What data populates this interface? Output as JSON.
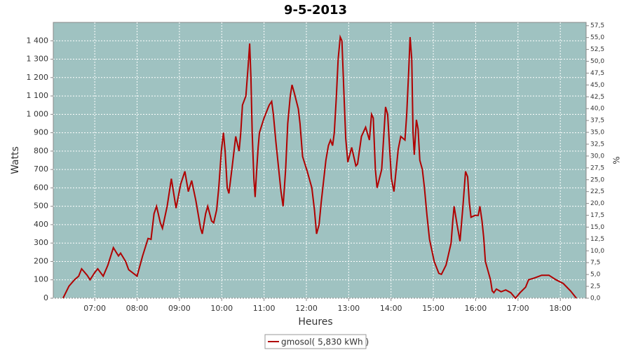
{
  "chart_data": {
    "type": "line",
    "title": "9-5-2013",
    "xlabel": "Heures",
    "ylabel": "Watts",
    "y2label": "%",
    "x": [
      6.25,
      6.39,
      6.52,
      6.62,
      6.69,
      6.82,
      6.89,
      7.0,
      7.07,
      7.2,
      7.31,
      7.44,
      7.56,
      7.61,
      7.73,
      7.8,
      8.0,
      8.13,
      8.26,
      8.33,
      8.4,
      8.46,
      8.55,
      8.6,
      8.71,
      8.81,
      8.92,
      9.03,
      9.13,
      9.21,
      9.29,
      9.39,
      9.5,
      9.54,
      9.62,
      9.67,
      9.76,
      9.81,
      9.88,
      9.93,
      9.99,
      10.04,
      10.08,
      10.13,
      10.17,
      10.25,
      10.33,
      10.41,
      10.45,
      10.49,
      10.57,
      10.62,
      10.66,
      10.69,
      10.72,
      10.76,
      10.79,
      10.82,
      10.86,
      10.89,
      11.0,
      11.12,
      11.18,
      11.22,
      11.28,
      11.4,
      11.45,
      11.51,
      11.56,
      11.62,
      11.66,
      11.71,
      11.81,
      11.85,
      11.91,
      12.02,
      12.13,
      12.19,
      12.24,
      12.3,
      12.35,
      12.46,
      12.52,
      12.57,
      12.62,
      12.66,
      12.71,
      12.75,
      12.8,
      12.84,
      12.89,
      12.93,
      12.98,
      13.07,
      13.17,
      13.21,
      13.3,
      13.4,
      13.49,
      13.54,
      13.58,
      13.63,
      13.67,
      13.78,
      13.87,
      13.92,
      14.01,
      14.07,
      14.17,
      14.23,
      14.33,
      14.37,
      14.42,
      14.45,
      14.49,
      14.52,
      14.55,
      14.6,
      14.64,
      14.68,
      14.74,
      14.79,
      14.85,
      14.91,
      15.02,
      15.13,
      15.19,
      15.3,
      15.42,
      15.46,
      15.49,
      15.56,
      15.63,
      15.7,
      15.76,
      15.81,
      15.85,
      15.89,
      15.98,
      16.06,
      16.1,
      16.15,
      16.19,
      16.23,
      16.35,
      16.39,
      16.43,
      16.49,
      16.6,
      16.71,
      16.83,
      16.94,
      17.05,
      17.18,
      17.25,
      17.39,
      17.56,
      17.73,
      17.9,
      18.07,
      18.24,
      18.38
    ],
    "series": [
      {
        "name": "gmosol( 5,830 kWh )",
        "color": "#b00000",
        "values": [
          0,
          65,
          100,
          120,
          160,
          125,
          100,
          140,
          160,
          120,
          180,
          275,
          230,
          245,
          200,
          155,
          120,
          230,
          325,
          320,
          460,
          500,
          410,
          380,
          500,
          650,
          490,
          620,
          690,
          580,
          640,
          530,
          380,
          350,
          460,
          500,
          420,
          410,
          480,
          600,
          800,
          900,
          800,
          600,
          570,
          720,
          880,
          800,
          900,
          1050,
          1100,
          1250,
          1385,
          1200,
          900,
          650,
          550,
          680,
          820,
          900,
          980,
          1050,
          1070,
          1000,
          850,
          580,
          500,
          700,
          950,
          1100,
          1160,
          1120,
          1030,
          950,
          770,
          690,
          600,
          480,
          350,
          400,
          520,
          750,
          830,
          860,
          830,
          900,
          1100,
          1300,
          1420,
          1400,
          1100,
          870,
          740,
          820,
          720,
          730,
          880,
          930,
          860,
          1000,
          980,
          700,
          600,
          700,
          1040,
          1000,
          650,
          580,
          810,
          880,
          860,
          1000,
          1250,
          1420,
          1300,
          900,
          780,
          970,
          920,
          750,
          700,
          600,
          450,
          320,
          200,
          135,
          130,
          180,
          300,
          420,
          500,
          400,
          310,
          500,
          690,
          660,
          520,
          440,
          450,
          450,
          500,
          420,
          330,
          200,
          100,
          40,
          30,
          50,
          35,
          45,
          30,
          0,
          30,
          60,
          100,
          110,
          125,
          125,
          100,
          80,
          40,
          0
        ]
      }
    ],
    "xlim": [
      6.02,
      18.61
    ],
    "xticks": [
      {
        "value": 7,
        "label": "07:00"
      },
      {
        "value": 8,
        "label": "08:00"
      },
      {
        "value": 9,
        "label": "09:00"
      },
      {
        "value": 10,
        "label": "10:00"
      },
      {
        "value": 11,
        "label": "11:00"
      },
      {
        "value": 12,
        "label": "12:00"
      },
      {
        "value": 13,
        "label": "13:00"
      },
      {
        "value": 14,
        "label": "14:00"
      },
      {
        "value": 15,
        "label": "15:00"
      },
      {
        "value": 16,
        "label": "16:00"
      },
      {
        "value": 17,
        "label": "17:00"
      },
      {
        "value": 18,
        "label": "18:00"
      }
    ],
    "ylim": [
      0,
      1500
    ],
    "yticks": [
      0,
      100,
      200,
      300,
      400,
      500,
      600,
      700,
      800,
      900,
      {
        "value": 1000,
        "label": "1 000"
      },
      {
        "value": 1100,
        "label": "1 100"
      },
      {
        "value": 1200,
        "label": "1 200"
      },
      {
        "value": 1300,
        "label": "1 300"
      },
      {
        "value": 1400,
        "label": "1 400"
      }
    ],
    "y2lim": [
      0,
      58.2
    ],
    "y2ticks": [
      {
        "value": 0,
        "label": "0,0"
      },
      {
        "value": 2.5,
        "label": "2,5"
      },
      {
        "value": 5,
        "label": "5,0"
      },
      {
        "value": 7.5,
        "label": "7,5"
      },
      {
        "value": 10,
        "label": "10,0"
      },
      {
        "value": 12.5,
        "label": "12,5"
      },
      {
        "value": 15,
        "label": "15,0"
      },
      {
        "value": 17.5,
        "label": "17,5"
      },
      {
        "value": 20,
        "label": "20,0"
      },
      {
        "value": 22.5,
        "label": "22,5"
      },
      {
        "value": 25,
        "label": "25,0"
      },
      {
        "value": 27.5,
        "label": "27,5"
      },
      {
        "value": 30,
        "label": "30,0"
      },
      {
        "value": 32.5,
        "label": "32,5"
      },
      {
        "value": 35,
        "label": "35,0"
      },
      {
        "value": 37.5,
        "label": "37,5"
      },
      {
        "value": 40,
        "label": "40,0"
      },
      {
        "value": 42.5,
        "label": "42,5"
      },
      {
        "value": 45,
        "label": "45,0"
      },
      {
        "value": 47.5,
        "label": "47,5"
      },
      {
        "value": 50,
        "label": "50,0"
      },
      {
        "value": 52.5,
        "label": "52,5"
      },
      {
        "value": 55,
        "label": "55,0"
      },
      {
        "value": 57.5,
        "label": "57,5"
      }
    ],
    "grid": true,
    "legend": "bottom"
  }
}
